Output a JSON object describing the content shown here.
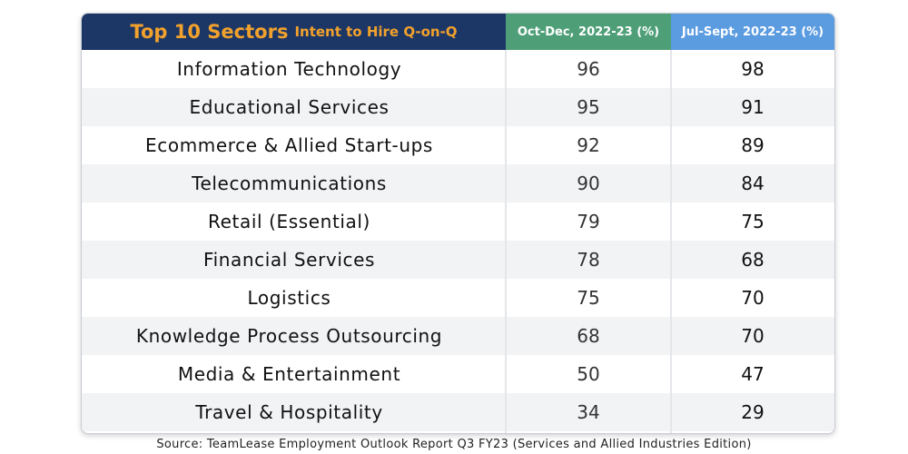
{
  "chart_data": {
    "type": "table",
    "title_main": "Top 10 Sectors",
    "title_sub": "Intent to Hire Q-on-Q",
    "columns": [
      "Oct-Dec, 2022-23 (%)",
      "Jul-Sept, 2022-23 (%)"
    ],
    "rows": [
      {
        "sector": "Information Technology",
        "oct_dec": "96",
        "jul_sept": "98"
      },
      {
        "sector": "Educational Services",
        "oct_dec": "95",
        "jul_sept": "91"
      },
      {
        "sector": "Ecommerce & Allied Start-ups",
        "oct_dec": "92",
        "jul_sept": "89"
      },
      {
        "sector": "Telecommunications",
        "oct_dec": "90",
        "jul_sept": "84"
      },
      {
        "sector": "Retail (Essential)",
        "oct_dec": "79",
        "jul_sept": "75"
      },
      {
        "sector": "Financial Services",
        "oct_dec": "78",
        "jul_sept": "68"
      },
      {
        "sector": "Logistics",
        "oct_dec": "75",
        "jul_sept": "70"
      },
      {
        "sector": "Knowledge Process Outsourcing",
        "oct_dec": "68",
        "jul_sept": "70"
      },
      {
        "sector": "Media & Entertainment",
        "oct_dec": "50",
        "jul_sept": "47"
      },
      {
        "sector": "Travel & Hospitality",
        "oct_dec": "34",
        "jul_sept": "29"
      }
    ],
    "source": "Source: TeamLease Employment Outlook Report Q3 FY23 (Services and Allied Industries Edition)"
  },
  "colors": {
    "header_navy": "#1c3766",
    "title_orange": "#f2a12c",
    "col1_green": "#4e9f78",
    "col2_blue": "#5b9be0",
    "row_stripe": "#f2f3f5"
  }
}
